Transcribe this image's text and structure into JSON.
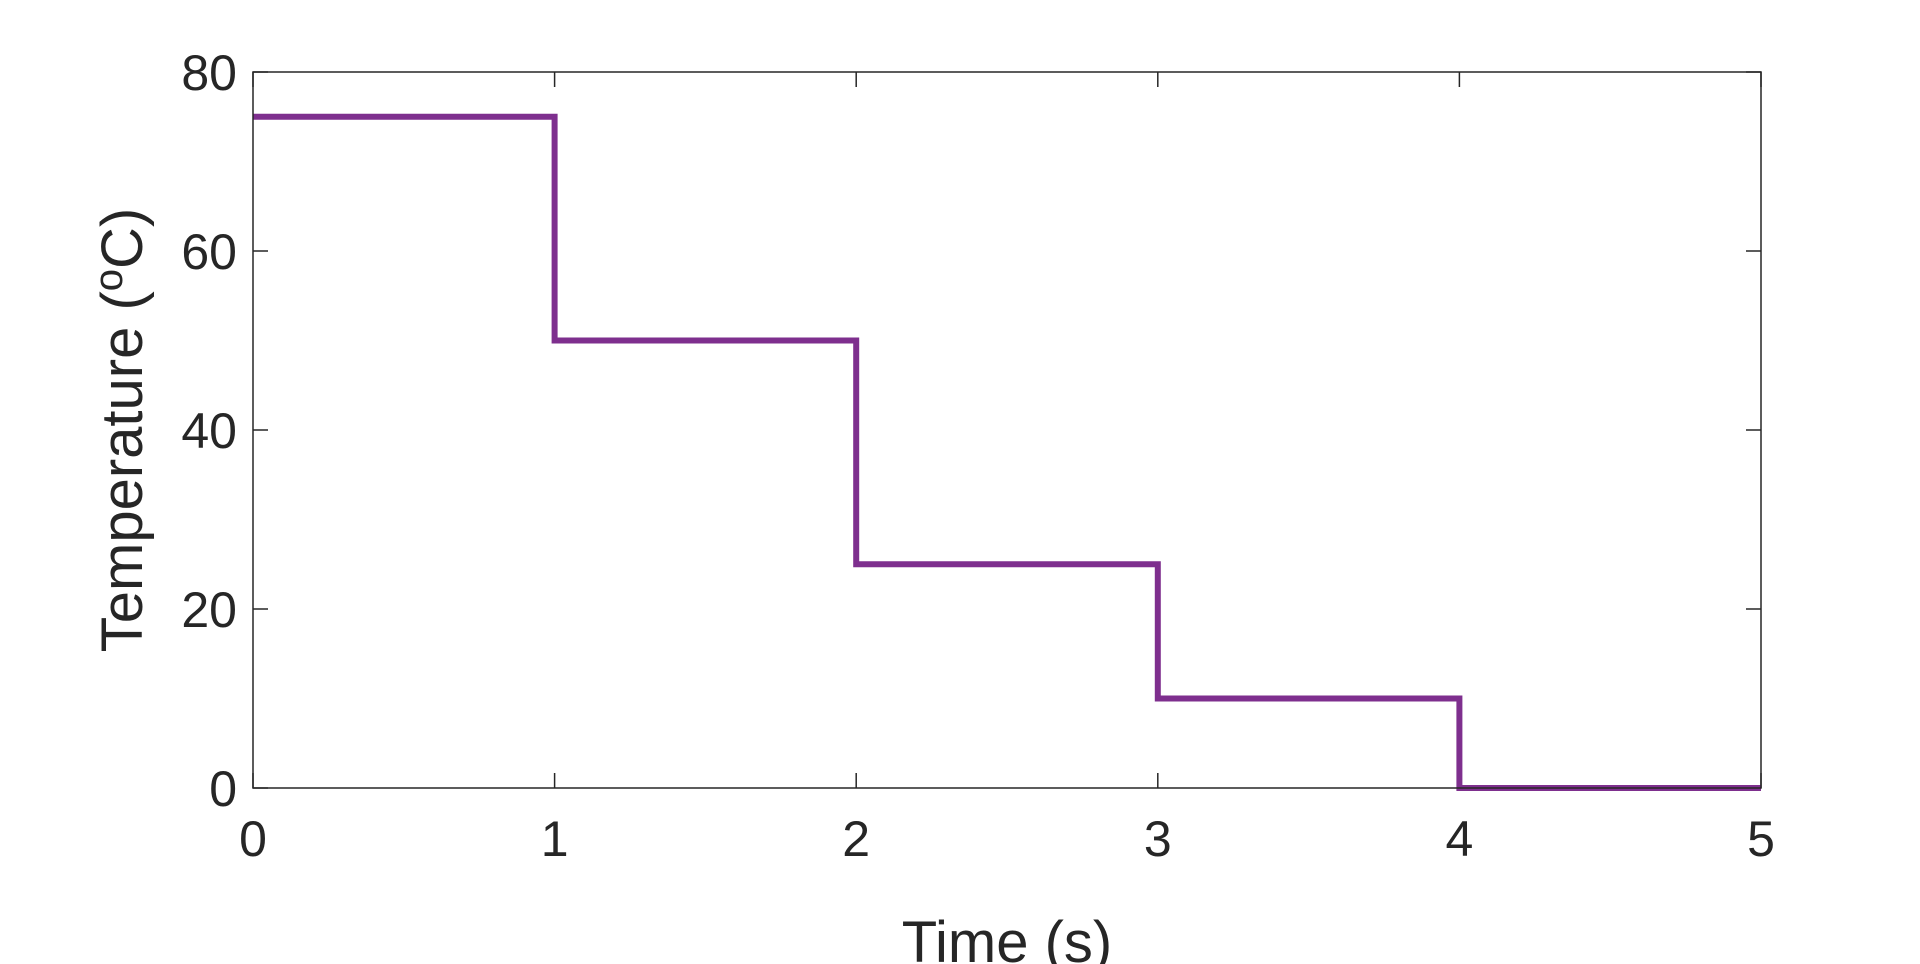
{
  "chart_data": {
    "type": "line",
    "step": true,
    "xlabel": "Time (s)",
    "ylabel": "Temperature (",
    "ylabel_sup": "o",
    "ylabel_tail": "C)",
    "xlim": [
      0,
      5
    ],
    "ylim": [
      0,
      80
    ],
    "xticks": [
      0,
      1,
      2,
      3,
      4,
      5
    ],
    "yticks": [
      0,
      20,
      40,
      60,
      80
    ],
    "grid": false,
    "series": [
      {
        "color": "#7E2F8E",
        "x": [
          0,
          1,
          1,
          2,
          2,
          3,
          3,
          4,
          4,
          5
        ],
        "y": [
          75,
          75,
          50,
          50,
          25,
          25,
          10,
          10,
          0,
          0
        ]
      }
    ]
  }
}
